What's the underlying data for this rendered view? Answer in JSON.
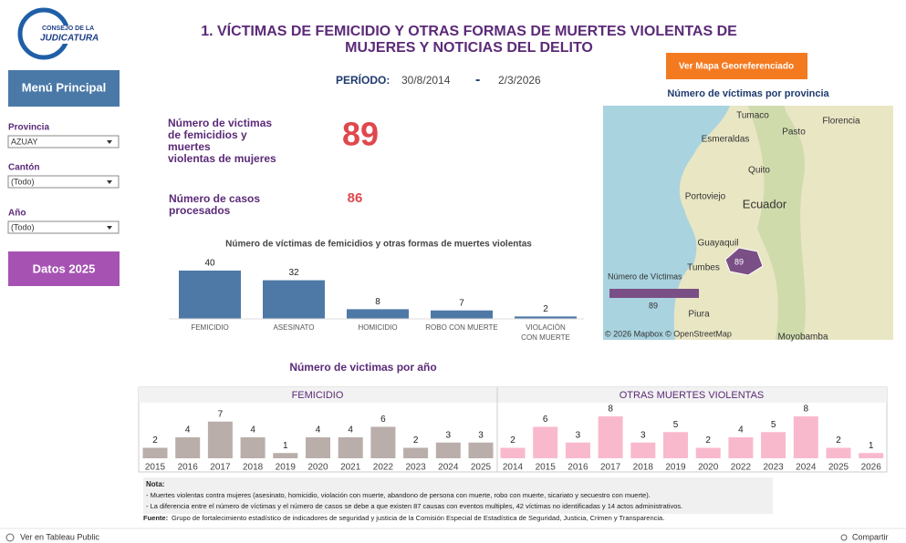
{
  "header": {
    "logo_lines": [
      "CONSEJO DE LA",
      "JUDICATURA"
    ],
    "title_lines": [
      "1. VÍCTIMAS DE FEMICIDIO Y OTRAS FORMAS DE MUERTES VIOLENTAS DE",
      "MUJERES Y NOTICIAS DEL DELITO"
    ],
    "period_label": "PERÍODO:",
    "period_start": "30/8/2014",
    "period_sep": "-",
    "period_end": "2/3/2026",
    "map_button": "Ver Mapa Georeferenciado"
  },
  "sidebar": {
    "menu_button": "Menú Principal",
    "filters": [
      {
        "label": "Provincia",
        "value": "AZUAY"
      },
      {
        "label": "Cantón",
        "value": "(Todo)"
      },
      {
        "label": "Año",
        "value": "(Todo)"
      }
    ],
    "data_button": "Datos 2025"
  },
  "kpis": [
    {
      "label_lines": [
        "Número de victimas",
        "de femicidios y",
        "muertes",
        "violentas de mujeres"
      ],
      "value": 89
    },
    {
      "label_lines": [
        "Número de casos",
        "procesados"
      ],
      "value": 86
    }
  ],
  "map": {
    "title": "Número de víctimas por provincia",
    "places": [
      "Tumaco",
      "Florencia",
      "Esmeraldas",
      "Pasto",
      "Quito",
      "Portoviejo",
      "Ecuador",
      "Guayaquil",
      "Tumbes",
      "Piura",
      "Moyobamba"
    ],
    "province_value": 89,
    "legend_title": "Número de Víctimas",
    "legend_value": 89,
    "credit": "© 2026 Mapbox © OpenStreetMap"
  },
  "year_section_title": "Número de victimas por año",
  "chart_data": [
    {
      "type": "bar",
      "title": "Número de víctimas de femicidios y otras formas de muertes violentas",
      "categories": [
        "FEMICIDIO",
        "ASESINATO",
        "HOMICIDIO",
        "ROBO CON MUERTE",
        "VIOLACIÓN CON MUERTE"
      ],
      "values": [
        40,
        32,
        8,
        7,
        2
      ],
      "color": "#4e79a7"
    },
    {
      "type": "bar",
      "title": "FEMICIDIO",
      "categories": [
        "2015",
        "2016",
        "2017",
        "2018",
        "2019",
        "2020",
        "2021",
        "2022",
        "2023",
        "2024",
        "2025"
      ],
      "values": [
        2,
        4,
        7,
        4,
        1,
        4,
        4,
        6,
        2,
        3,
        3
      ],
      "color": "#b9aeaa"
    },
    {
      "type": "bar",
      "title": "OTRAS MUERTES VIOLENTAS",
      "categories": [
        "2014",
        "2015",
        "2016",
        "2017",
        "2018",
        "2019",
        "2020",
        "2022",
        "2023",
        "2024",
        "2025",
        "2026"
      ],
      "values": [
        2,
        6,
        3,
        8,
        3,
        5,
        2,
        4,
        5,
        8,
        2,
        1
      ],
      "color": "#f9b9cd"
    }
  ],
  "notes": {
    "heading": "Nota:",
    "lines": [
      "- Muertes violentas contra mujeres (asesinato, homicidio, violación con muerte, abandono de persona con muerte, robo con muerte, sicariato y secuestro con muerte).",
      "- La diferencia entre el número de víctimas y el número de casos se debe a que existen 87 causas con eventos multiples, 42 víctimas no identificadas y 14  actos administrativos."
    ],
    "source_label": "Fuente:",
    "source": "Grupo de fortalecimiento estadístico de indicadores de seguridad y justicia de la Comisión Especial de Estadística de Seguridad, Justicia, Crimen y Transparencia."
  },
  "toolbar": {
    "view": "Ver en Tableau Public",
    "share": "Compartir"
  }
}
